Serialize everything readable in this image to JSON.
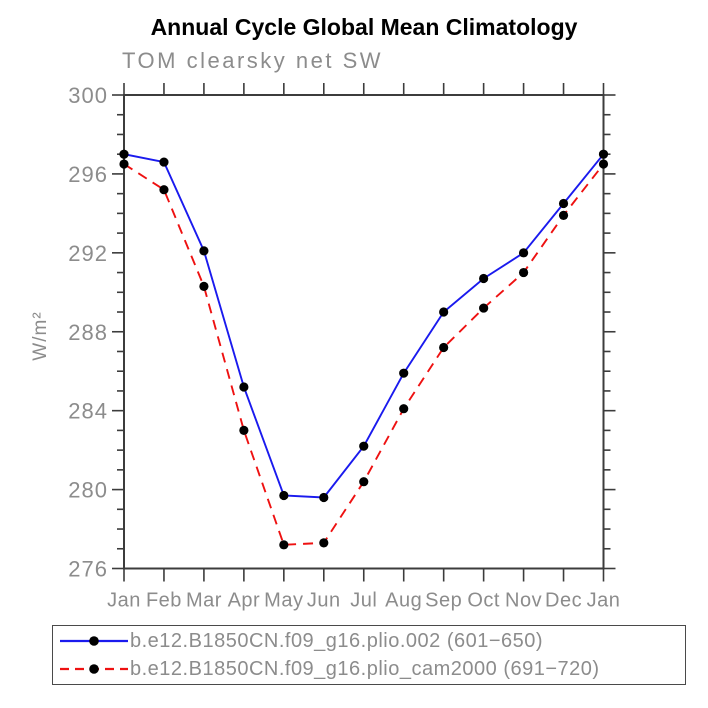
{
  "chart_data": {
    "type": "line",
    "title": "Annual Cycle Global Mean Climatology",
    "subtitle": "TOM clearsky net SW",
    "ylabel": "W/m²",
    "ylim": [
      276,
      300
    ],
    "ytick_major_step": 4,
    "ytick_minor_step": 1,
    "ytick_labels": [
      "276",
      "280",
      "284",
      "288",
      "292",
      "296",
      "300"
    ],
    "xtick_labels": [
      "Jan",
      "Feb",
      "Mar",
      "Apr",
      "May",
      "Jun",
      "Jul",
      "Aug",
      "Sep",
      "Oct",
      "Nov",
      "Dec",
      "Jan"
    ],
    "categories": [
      "Jan",
      "Feb",
      "Mar",
      "Apr",
      "May",
      "Jun",
      "Jul",
      "Aug",
      "Sep",
      "Oct",
      "Nov",
      "Dec",
      "Jan"
    ],
    "grid": false,
    "legend_position": "bottom",
    "marker": "filled-circle",
    "marker_color": "#000000",
    "axis_color": "#3c3c3c",
    "label_color": "#8c8c8c",
    "series": [
      {
        "name": "b.e12.B1850CN.f09_g16.plio.002 (601−650)",
        "color": "#1a1aee",
        "line_style": "solid",
        "values": [
          297.0,
          296.6,
          292.1,
          285.2,
          279.7,
          279.6,
          282.2,
          285.9,
          289.0,
          290.7,
          292.0,
          294.5,
          297.0
        ]
      },
      {
        "name": "b.e12.B1850CN.f09_g16.plio_cam2000 (691−720)",
        "color": "#ee1111",
        "line_style": "dashed",
        "values": [
          296.5,
          295.2,
          290.3,
          283.0,
          277.2,
          277.3,
          280.4,
          284.1,
          287.2,
          289.2,
          291.0,
          293.9,
          296.5
        ]
      }
    ]
  }
}
